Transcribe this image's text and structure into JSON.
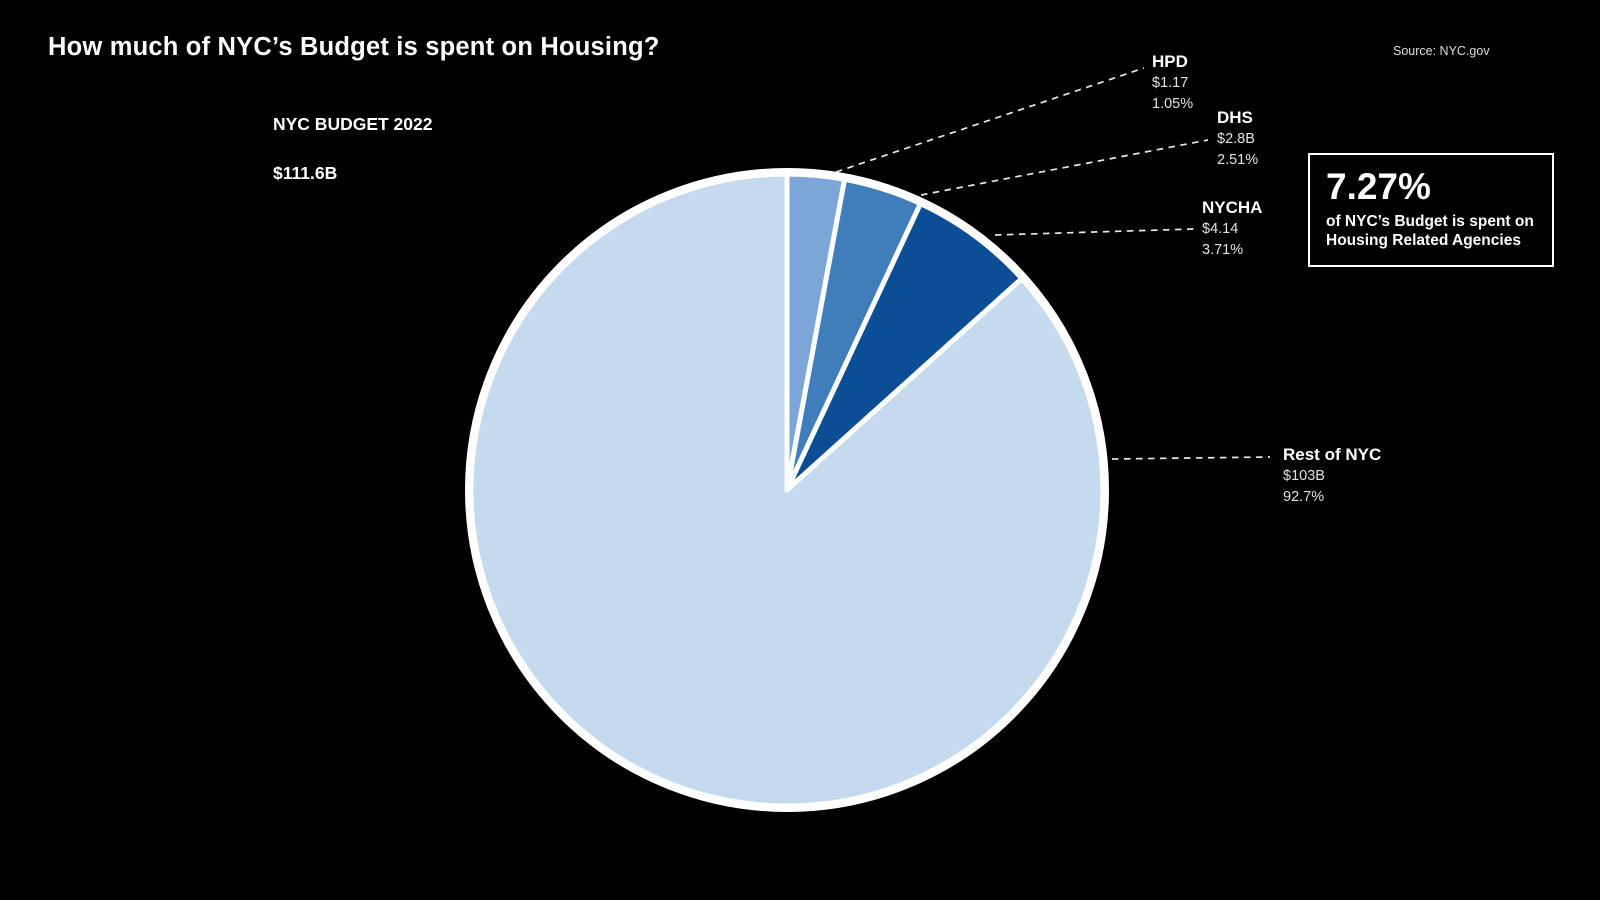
{
  "title": "How much of NYC’s Budget is spent on Housing?",
  "source": "Source: NYC.gov",
  "budget_label": {
    "line1": "NYC BUDGET 2022",
    "line2": "$111.6B"
  },
  "callout": {
    "percent": "7.27%",
    "line1": "of NYC’s Budget is spent on",
    "line2": "Housing Related Agencies"
  },
  "colors": {
    "background": "#000000",
    "text": "#ffffff",
    "leader_line": "#e8e8e8",
    "slice_stroke": "#ffffff"
  },
  "chart_data": {
    "type": "pie",
    "title": "NYC BUDGET 2022",
    "total_label": "$111.6B",
    "total_value_billions": 111.6,
    "units": "USD billions",
    "legend_position": "outside labels with dashed leader lines",
    "segments": [
      {
        "name": "HPD",
        "amount": "$1.17",
        "percent": "1.05%",
        "value_billions": 1.17,
        "pct": 1.05,
        "color": "#7ca6d7",
        "display_start_deg": 0,
        "display_end_deg": 10.5
      },
      {
        "name": "DHS",
        "amount": "$2.8B",
        "percent": "2.51%",
        "value_billions": 2.8,
        "pct": 2.51,
        "color": "#3f7dbb",
        "display_start_deg": 10.5,
        "display_end_deg": 25
      },
      {
        "name": "NYCHA",
        "amount": "$4.14",
        "percent": "3.71%",
        "value_billions": 4.14,
        "pct": 3.71,
        "color": "#0b4e96",
        "display_start_deg": 25,
        "display_end_deg": 48
      },
      {
        "name": "Rest of NYC",
        "amount": "$103B",
        "percent": "92.7%",
        "value_billions": 103,
        "pct": 92.7,
        "color": "#c5daef",
        "display_start_deg": 48,
        "display_end_deg": 360
      }
    ]
  }
}
